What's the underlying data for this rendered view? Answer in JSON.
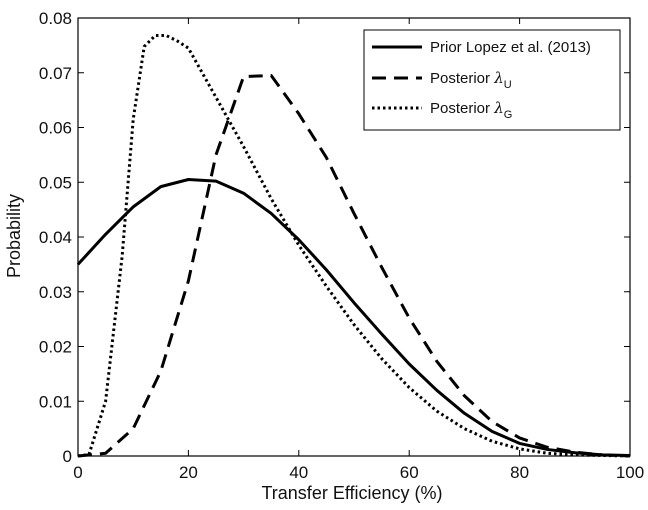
{
  "chart_data": {
    "type": "line",
    "title": "",
    "xlabel": "Transfer Efficiency (%)",
    "ylabel": "Probability",
    "xlim": [
      0,
      100
    ],
    "ylim": [
      0,
      0.08
    ],
    "xticks": [
      0,
      20,
      40,
      60,
      80,
      100
    ],
    "xtick_labels": [
      "0",
      "20",
      "40",
      "60",
      "80",
      "100"
    ],
    "yticks": [
      0,
      0.01,
      0.02,
      0.03,
      0.04,
      0.05,
      0.06,
      0.07,
      0.08
    ],
    "ytick_labels": [
      "0",
      "0.01",
      "0.02",
      "0.03",
      "0.04",
      "0.05",
      "0.06",
      "0.07",
      "0.08"
    ],
    "grid": false,
    "legend_position": "top-right",
    "series": [
      {
        "name": "Prior Lopez et al. (2013)",
        "line_style": "solid",
        "color": "#000000",
        "x": [
          0,
          5,
          10,
          15,
          20,
          25,
          30,
          35,
          40,
          45,
          50,
          55,
          60,
          65,
          70,
          75,
          80,
          85,
          90,
          95,
          100
        ],
        "y": [
          0.035,
          0.0405,
          0.0455,
          0.0492,
          0.0505,
          0.0502,
          0.048,
          0.0443,
          0.0395,
          0.034,
          0.028,
          0.0223,
          0.0168,
          0.012,
          0.0078,
          0.0045,
          0.0023,
          0.0012,
          0.0006,
          0.0002,
          0.0001
        ]
      },
      {
        "name": "Posterior λ",
        "name_subscript": "U",
        "line_style": "dashed",
        "color": "#000000",
        "x": [
          0,
          5,
          10,
          15,
          20,
          25,
          30,
          35,
          40,
          45,
          50,
          55,
          60,
          65,
          70,
          75,
          80,
          85,
          90,
          95,
          100
        ],
        "y": [
          0,
          0.0005,
          0.005,
          0.0155,
          0.032,
          0.055,
          0.0693,
          0.0695,
          0.0625,
          0.0545,
          0.0443,
          0.0345,
          0.0252,
          0.0173,
          0.011,
          0.0063,
          0.0033,
          0.0016,
          0.0007,
          0.0002,
          0
        ]
      },
      {
        "name": "Posterior λ",
        "name_subscript": "G",
        "line_style": "dotted",
        "color": "#000000",
        "x": [
          0,
          2,
          5,
          8,
          10,
          12,
          14,
          16,
          18,
          20,
          25,
          30,
          35,
          40,
          45,
          50,
          55,
          60,
          65,
          70,
          75,
          80,
          85,
          90,
          95,
          100
        ],
        "y": [
          0,
          0.0003,
          0.01,
          0.0365,
          0.0615,
          0.0748,
          0.0768,
          0.0768,
          0.0758,
          0.0745,
          0.0655,
          0.0565,
          0.047,
          0.0385,
          0.031,
          0.024,
          0.0178,
          0.0125,
          0.0082,
          0.005,
          0.0027,
          0.0013,
          0.0005,
          0.0002,
          0.0001,
          0
        ]
      }
    ]
  }
}
